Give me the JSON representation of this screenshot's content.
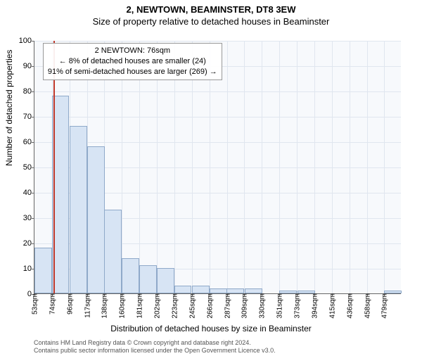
{
  "title": "2, NEWTOWN, BEAMINSTER, DT8 3EW",
  "subtitle": "Size of property relative to detached houses in Beaminster",
  "ylabel": "Number of detached properties",
  "xlabel": "Distribution of detached houses by size in Beaminster",
  "footer_line1": "Contains HM Land Registry data © Crown copyright and database right 2024.",
  "footer_line2": "Contains public sector information licensed under the Open Government Licence v3.0.",
  "annotation": {
    "line1": "2 NEWTOWN: 76sqm",
    "line2": "← 8% of detached houses are smaller (24)",
    "line3": "91% of semi-detached houses are larger (269) →"
  },
  "chart": {
    "type": "histogram",
    "background_color": "#f7f9fc",
    "grid_color": "#e0e6ef",
    "bar_fill": "#d7e4f4",
    "bar_stroke": "#8fa9c9",
    "marker_color": "#c0392b",
    "ylim": [
      0,
      100
    ],
    "ytick_step": 10,
    "xlim": [
      53,
      500
    ],
    "xtick_start": 53,
    "xtick_step": 21.3,
    "xtick_unit": "sqm",
    "xtick_count": 21,
    "marker_x": 76,
    "bin_width": 21.3,
    "bars": [
      {
        "x0": 53,
        "count": 18
      },
      {
        "x0": 74,
        "count": 78
      },
      {
        "x0": 96,
        "count": 66
      },
      {
        "x0": 117,
        "count": 58
      },
      {
        "x0": 138,
        "count": 33
      },
      {
        "x0": 159,
        "count": 14
      },
      {
        "x0": 181,
        "count": 11
      },
      {
        "x0": 202,
        "count": 10
      },
      {
        "x0": 223,
        "count": 3
      },
      {
        "x0": 245,
        "count": 3
      },
      {
        "x0": 266,
        "count": 2
      },
      {
        "x0": 287,
        "count": 2
      },
      {
        "x0": 309,
        "count": 2
      },
      {
        "x0": 330,
        "count": 0
      },
      {
        "x0": 351,
        "count": 1
      },
      {
        "x0": 373,
        "count": 1
      },
      {
        "x0": 394,
        "count": 0
      },
      {
        "x0": 415,
        "count": 0
      },
      {
        "x0": 436,
        "count": 0
      },
      {
        "x0": 458,
        "count": 0
      },
      {
        "x0": 479,
        "count": 1
      }
    ]
  }
}
